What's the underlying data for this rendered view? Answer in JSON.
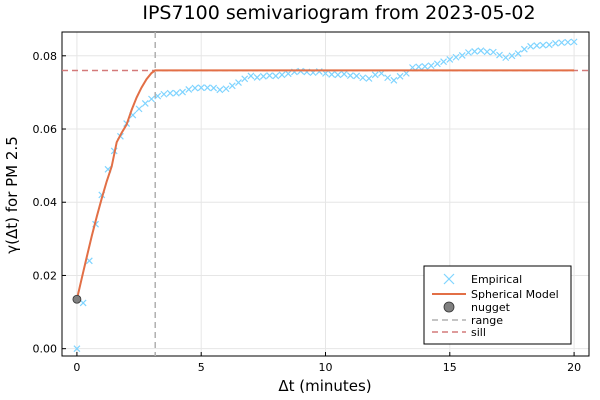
{
  "chart_data": {
    "type": "line",
    "title": "IPS7100 semivariogram from 2023-05-02",
    "xlabel": "Δt (minutes)",
    "ylabel": "γ(Δt) for PM 2.5",
    "xlim": [
      -0.6,
      20.6
    ],
    "ylim": [
      -0.002,
      0.0865
    ],
    "x_ticks": [
      0,
      5,
      10,
      15,
      20
    ],
    "x_tick_labels": [
      "0",
      "5",
      "10",
      "15",
      "20"
    ],
    "y_ticks": [
      0.0,
      0.02,
      0.04,
      0.06,
      0.08
    ],
    "y_tick_labels": [
      "0.00",
      "0.02",
      "0.04",
      "0.06",
      "0.08"
    ],
    "grid": true,
    "legend_position": "bottom-right",
    "legend": [
      "Empirical",
      "Spherical Model",
      "nugget",
      "range",
      "sill"
    ],
    "series": [
      {
        "name": "Empirical",
        "style": "markers",
        "color": "#7fd4ff",
        "x": [
          0,
          0.25,
          0.5,
          0.75,
          1.0,
          1.25,
          1.5,
          1.75,
          2.0,
          2.25,
          2.5,
          2.75,
          3.0,
          3.25,
          3.5,
          3.75,
          4.0,
          4.25,
          4.5,
          4.75,
          5.0,
          5.25,
          5.5,
          5.75,
          6.0,
          6.25,
          6.5,
          6.75,
          7.0,
          7.25,
          7.5,
          7.75,
          8.0,
          8.25,
          8.5,
          8.75,
          9.0,
          9.25,
          9.5,
          9.75,
          10.0,
          10.25,
          10.5,
          10.75,
          11.0,
          11.25,
          11.5,
          11.75,
          12.0,
          12.25,
          12.5,
          12.75,
          13.0,
          13.25,
          13.5,
          13.75,
          14.0,
          14.25,
          14.5,
          14.75,
          15.0,
          15.25,
          15.5,
          15.75,
          16.0,
          16.25,
          16.5,
          16.75,
          17.0,
          17.25,
          17.5,
          17.75,
          18.0,
          18.25,
          18.5,
          18.75,
          19.0,
          19.25,
          19.5,
          19.75,
          20.0
        ],
        "y": [
          0.0,
          0.0125,
          0.024,
          0.034,
          0.042,
          0.049,
          0.054,
          0.058,
          0.0615,
          0.0638,
          0.0655,
          0.067,
          0.0682,
          0.069,
          0.0695,
          0.0698,
          0.0698,
          0.0701,
          0.0708,
          0.0712,
          0.0713,
          0.0713,
          0.0712,
          0.0707,
          0.071,
          0.0718,
          0.0727,
          0.0737,
          0.0745,
          0.0741,
          0.0744,
          0.0746,
          0.0745,
          0.0748,
          0.0751,
          0.0756,
          0.0758,
          0.0756,
          0.0754,
          0.0757,
          0.0752,
          0.0749,
          0.0748,
          0.075,
          0.0746,
          0.0745,
          0.074,
          0.0738,
          0.0748,
          0.0752,
          0.074,
          0.0733,
          0.0744,
          0.0752,
          0.0768,
          0.077,
          0.0771,
          0.0773,
          0.0778,
          0.0784,
          0.079,
          0.0796,
          0.0801,
          0.0809,
          0.0812,
          0.0814,
          0.0811,
          0.081,
          0.0802,
          0.0795,
          0.08,
          0.0806,
          0.0818,
          0.0826,
          0.0828,
          0.0829,
          0.083,
          0.0834,
          0.0836,
          0.0837,
          0.0838
        ]
      },
      {
        "name": "Spherical Model",
        "style": "line",
        "color": "#e26f46",
        "x": [
          0,
          0.2,
          0.4,
          0.6,
          0.8,
          1.0,
          1.2,
          1.4,
          1.6,
          1.8,
          2.0,
          2.2,
          2.4,
          2.6,
          2.8,
          3.0,
          3.15,
          4.0,
          6.0,
          8.0,
          10.0,
          12.0,
          14.0,
          16.0,
          18.0,
          20.0
        ],
        "y": [
          0.0135,
          0.0194,
          0.0252,
          0.0308,
          0.0361,
          0.0411,
          0.0457,
          0.0498,
          0.0564,
          0.059,
          0.0612,
          0.0652,
          0.0686,
          0.0713,
          0.0736,
          0.0753,
          0.076,
          0.076,
          0.076,
          0.076,
          0.076,
          0.076,
          0.076,
          0.076,
          0.076,
          0.076
        ]
      }
    ],
    "nugget": {
      "name": "nugget",
      "x": 0,
      "y": 0.0135,
      "color": "#808080"
    },
    "range": {
      "name": "range",
      "x": 3.15,
      "color": "#b0b0b0"
    },
    "sill": {
      "name": "sill",
      "y": 0.076,
      "color": "#d47a7a"
    }
  }
}
